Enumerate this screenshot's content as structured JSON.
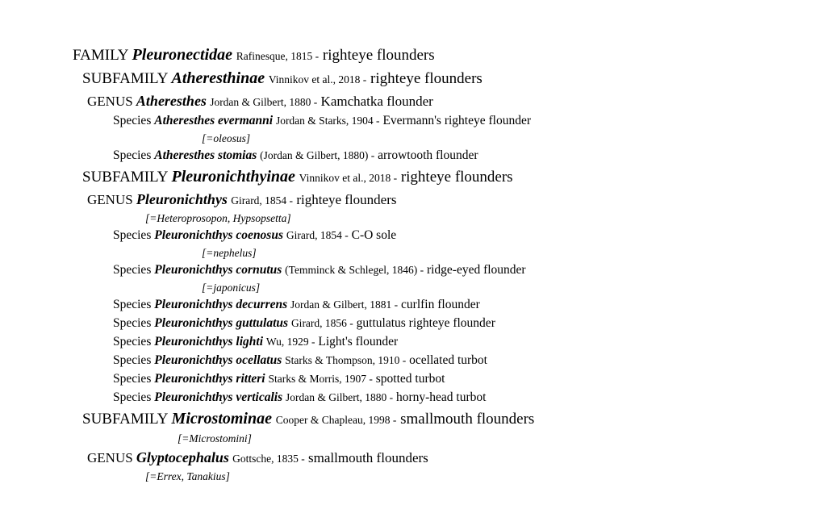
{
  "family": {
    "rank": "FAMILY",
    "name": "Pleuronectidae",
    "authority": "Rafinesque, 1815 -",
    "common": "righteye flounders"
  },
  "sf1": {
    "rank": "SUBFAMILY",
    "name": "Atheresthinae",
    "authority": "Vinnikov et al., 2018 -",
    "common": "righteye flounders",
    "genus": {
      "rank": "GENUS",
      "name": "Atheresthes",
      "authority": "Jordan & Gilbert, 1880 -",
      "common": "Kamchatka flounder",
      "sp1": {
        "rank": "Species",
        "name": "Atheresthes evermanni",
        "authority": "Jordan & Starks, 1904 -",
        "common": "Evermann's righteye flounder",
        "syn": "[=oleosus]"
      },
      "sp2": {
        "rank": "Species",
        "name": "Atheresthes stomias",
        "authority": "(Jordan & Gilbert, 1880) -",
        "common": "arrowtooth flounder"
      }
    }
  },
  "sf2": {
    "rank": "SUBFAMILY",
    "name": "Pleuronichthyinae",
    "authority": "Vinnikov et al., 2018 -",
    "common": "righteye flounders",
    "genus": {
      "rank": "GENUS",
      "name": "Pleuronichthys",
      "authority": "Girard, 1854 -",
      "common": "righteye flounders",
      "syn": "[=Heteroprosopon, Hypsopsetta]",
      "sp1": {
        "rank": "Species",
        "name": "Pleuronichthys coenosus",
        "authority": "Girard, 1854 -",
        "common": "C-O sole",
        "syn": "[=nephelus]"
      },
      "sp2": {
        "rank": "Species",
        "name": "Pleuronichthys cornutus",
        "authority": "(Temminck & Schlegel, 1846) -",
        "common": "ridge-eyed flounder",
        "syn": "[=japonicus]"
      },
      "sp3": {
        "rank": "Species",
        "name": "Pleuronichthys decurrens",
        "authority": "Jordan & Gilbert, 1881 -",
        "common": "curlfin flounder"
      },
      "sp4": {
        "rank": "Species",
        "name": "Pleuronichthys guttulatus",
        "authority": "Girard, 1856 -",
        "common": "guttulatus righteye flounder"
      },
      "sp5": {
        "rank": "Species",
        "name": "Pleuronichthys lighti",
        "authority": "Wu, 1929 -",
        "common": "Light's flounder"
      },
      "sp6": {
        "rank": "Species",
        "name": "Pleuronichthys ocellatus",
        "authority": "Starks & Thompson, 1910 -",
        "common": "ocellated turbot"
      },
      "sp7": {
        "rank": "Species",
        "name": "Pleuronichthys ritteri",
        "authority": "Starks & Morris, 1907 -",
        "common": "spotted turbot"
      },
      "sp8": {
        "rank": "Species",
        "name": "Pleuronichthys verticalis",
        "authority": "Jordan & Gilbert, 1880 -",
        "common": "horny-head turbot"
      }
    }
  },
  "sf3": {
    "rank": "SUBFAMILY",
    "name": "Microstominae",
    "authority": "Cooper & Chapleau, 1998 -",
    "common": "smallmouth flounders",
    "syn": "[=Microstomini]",
    "genus": {
      "rank": "GENUS",
      "name": "Glyptocephalus",
      "authority": "Gottsche, 1835 -",
      "common": "smallmouth flounders",
      "syn": "[=Errex, Tanakius]"
    }
  }
}
